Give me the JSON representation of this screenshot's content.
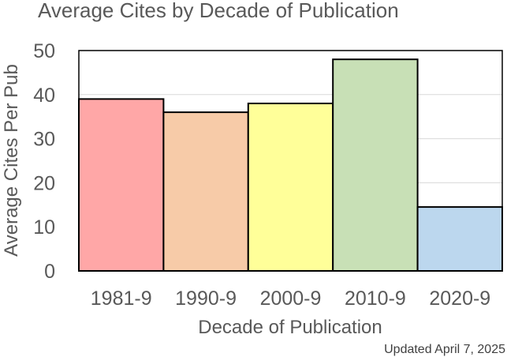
{
  "chart_data": {
    "type": "bar",
    "title": "Average Cites by Decade of Publication",
    "xlabel": "Decade of Publication",
    "ylabel": "Average Cites Per Pub",
    "categories": [
      "1981-9",
      "1990-9",
      "2000-9",
      "2010-9",
      "2020-9"
    ],
    "values": [
      39,
      36,
      38,
      48,
      14.5
    ],
    "ylim": [
      0,
      50
    ],
    "yticks": [
      0,
      10,
      20,
      30,
      40,
      50
    ],
    "grid": true,
    "legend": "none",
    "colors": [
      "#ffa7a7",
      "#f7cba8",
      "#ffff99",
      "#c8e0b6",
      "#bcd7ee"
    ]
  },
  "note": "Updated April 7, 2025"
}
